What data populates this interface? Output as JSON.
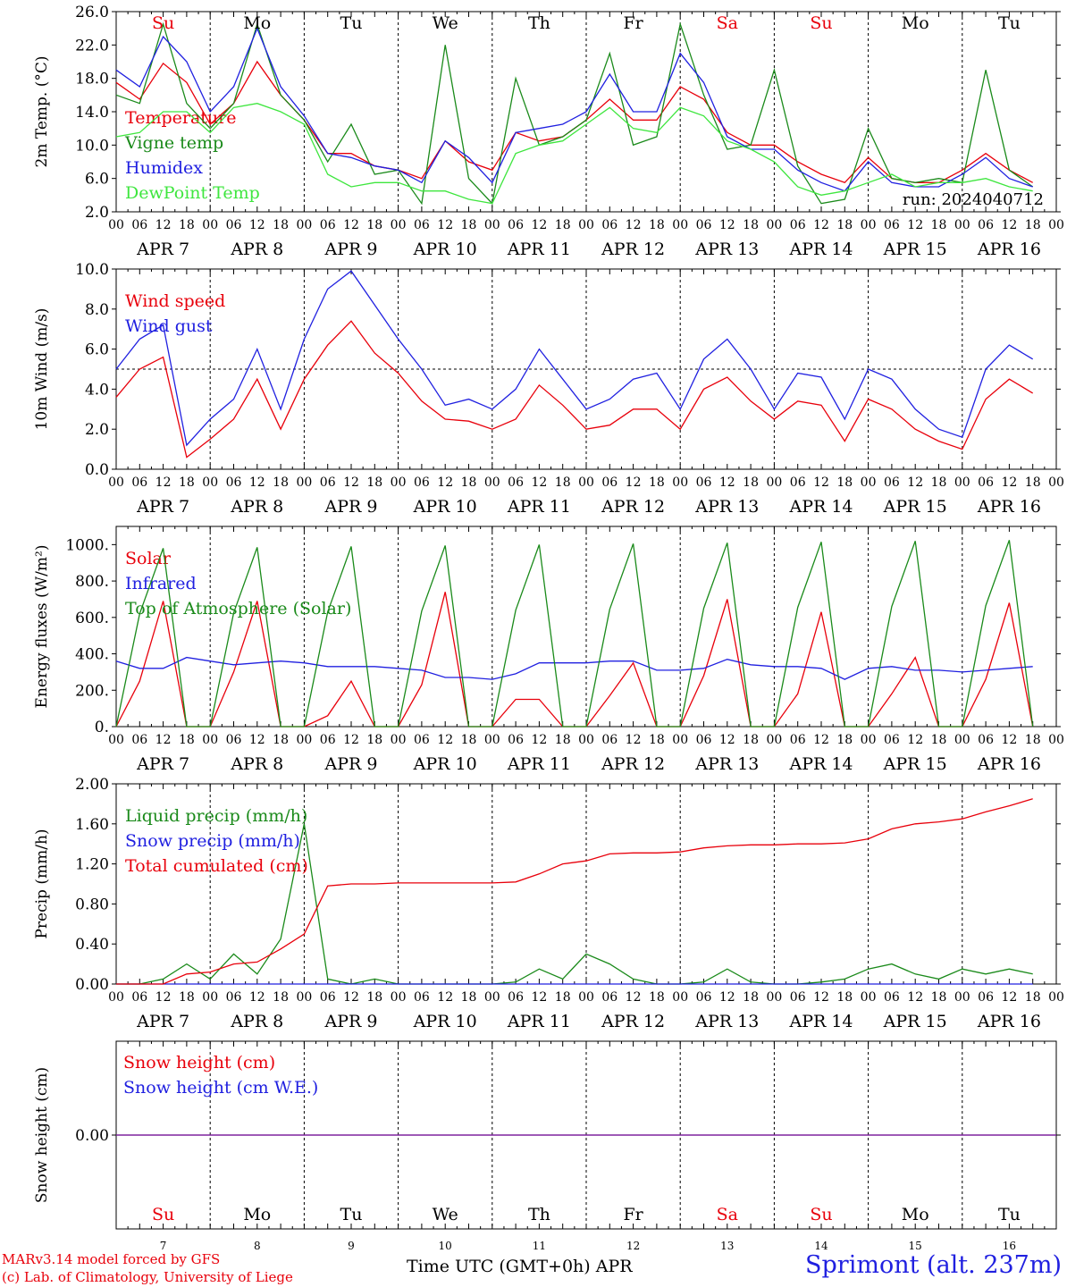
{
  "run_label": "run: 2024040712",
  "x_ticks": [
    "00",
    "06",
    "12",
    "18"
  ],
  "x_end_tick": "00",
  "days": [
    {
      "date": "APR  7",
      "num": "7",
      "dow": "Su",
      "weekend": true
    },
    {
      "date": "APR  8",
      "num": "8",
      "dow": "Mo",
      "weekend": false
    },
    {
      "date": "APR  9",
      "num": "9",
      "dow": "Tu",
      "weekend": false
    },
    {
      "date": "APR 10",
      "num": "10",
      "dow": "We",
      "weekend": false
    },
    {
      "date": "APR 11",
      "num": "11",
      "dow": "Th",
      "weekend": false
    },
    {
      "date": "APR 12",
      "num": "12",
      "dow": "Fr",
      "weekend": false
    },
    {
      "date": "APR 13",
      "num": "13",
      "dow": "Sa",
      "weekend": true
    },
    {
      "date": "APR 14",
      "num": "14",
      "dow": "Su",
      "weekend": true
    },
    {
      "date": "APR 15",
      "num": "15",
      "dow": "Mo",
      "weekend": false
    },
    {
      "date": "APR 16",
      "num": "16",
      "dow": "Tu",
      "weekend": false
    }
  ],
  "colors": {
    "red": "#e8000b",
    "green": "#1a8a1a",
    "blue": "#2020e0",
    "lightgreen": "#3ee63e",
    "purple": "#7a1a9a"
  },
  "footer": {
    "model": "MARv3.14 model forced by GFS",
    "lab": "(c) Lab. of Climatology, University of Liege",
    "axis": "Time UTC (GMT+0h) APR",
    "site": "Sprimont (alt. 237m)"
  },
  "chart_data": [
    {
      "type": "line",
      "ylabel": "2m Temp. (°C)",
      "ylim": [
        2,
        26
      ],
      "yticks": [
        "2.0",
        "6.0",
        "10.0",
        "14.0",
        "18.0",
        "22.0",
        "26.0"
      ],
      "x_hours": [
        0,
        6,
        12,
        18,
        24,
        30,
        36,
        42,
        48,
        54,
        60,
        66,
        72,
        78,
        84,
        90,
        96,
        102,
        108,
        114,
        120,
        126,
        132,
        138,
        144,
        150,
        156,
        162,
        168,
        174,
        180,
        186,
        192,
        198,
        204,
        210,
        216,
        222,
        228,
        234
      ],
      "series": [
        {
          "name": "Temperature",
          "color": "red",
          "values": [
            17.5,
            15.5,
            19.8,
            17.5,
            12.5,
            15.0,
            20.0,
            16.0,
            13.0,
            9.0,
            9.0,
            7.5,
            7.0,
            6.0,
            10.5,
            8.0,
            7.0,
            11.5,
            10.5,
            11.0,
            13.0,
            15.5,
            13.0,
            13.0,
            17.0,
            15.5,
            11.5,
            10.0,
            10.0,
            8.0,
            6.5,
            5.5,
            8.5,
            6.0,
            5.5,
            5.5,
            7.0,
            9.0,
            7.0,
            5.5
          ]
        },
        {
          "name": "Vigne temp",
          "color": "green",
          "values": [
            16.0,
            15.0,
            24.5,
            15.0,
            12.0,
            15.0,
            24.5,
            16.0,
            13.0,
            8.0,
            12.5,
            6.5,
            7.0,
            3.0,
            22.0,
            6.0,
            3.0,
            18.0,
            10.0,
            11.0,
            13.0,
            21.0,
            10.0,
            11.0,
            24.5,
            16.0,
            9.5,
            10.0,
            19.0,
            7.5,
            3.0,
            3.5,
            12.0,
            6.0,
            5.5,
            6.0,
            5.5,
            19.0,
            7.0,
            5.0
          ]
        },
        {
          "name": "Humidex",
          "color": "blue",
          "values": [
            19.0,
            17.0,
            23.0,
            20.0,
            14.0,
            17.0,
            24.0,
            17.0,
            13.5,
            9.0,
            8.5,
            7.5,
            7.0,
            5.5,
            10.5,
            8.5,
            5.5,
            11.5,
            12.0,
            12.5,
            14.0,
            18.5,
            14.0,
            14.0,
            21.0,
            17.5,
            11.0,
            9.5,
            9.5,
            7.0,
            5.5,
            4.5,
            8.0,
            5.5,
            5.0,
            5.0,
            6.5,
            8.5,
            6.0,
            5.0
          ]
        },
        {
          "name": "DewPoint Temp",
          "color": "lightgreen",
          "values": [
            11.0,
            11.5,
            14.0,
            14.0,
            11.5,
            14.5,
            15.0,
            14.0,
            12.5,
            6.5,
            5.0,
            5.5,
            5.5,
            4.5,
            4.5,
            3.5,
            3.0,
            9.0,
            10.0,
            10.5,
            12.5,
            14.5,
            12.0,
            11.5,
            14.5,
            13.5,
            10.5,
            9.5,
            8.0,
            5.0,
            4.0,
            4.5,
            5.5,
            6.5,
            5.0,
            5.5,
            5.5,
            6.0,
            5.0,
            4.5
          ]
        }
      ]
    },
    {
      "type": "line",
      "ylabel": "10m Wind (m/s)",
      "ylim": [
        0,
        10
      ],
      "yticks": [
        "0.0",
        "2.0",
        "4.0",
        "6.0",
        "8.0",
        "10.0"
      ],
      "ref_line": 5,
      "x_hours": [
        0,
        6,
        12,
        18,
        24,
        30,
        36,
        42,
        48,
        54,
        60,
        66,
        72,
        78,
        84,
        90,
        96,
        102,
        108,
        114,
        120,
        126,
        132,
        138,
        144,
        150,
        156,
        162,
        168,
        174,
        180,
        186,
        192,
        198,
        204,
        210,
        216,
        222,
        228,
        234
      ],
      "series": [
        {
          "name": "Wind speed",
          "color": "red",
          "values": [
            3.6,
            5.0,
            5.6,
            0.6,
            1.5,
            2.5,
            4.5,
            2.0,
            4.5,
            6.2,
            7.4,
            5.8,
            4.8,
            3.4,
            2.5,
            2.4,
            2.0,
            2.5,
            4.2,
            3.2,
            2.0,
            2.2,
            3.0,
            3.0,
            2.0,
            4.0,
            4.6,
            3.4,
            2.5,
            3.4,
            3.2,
            1.4,
            3.5,
            3.0,
            2.0,
            1.4,
            1.0,
            3.5,
            4.5,
            3.8
          ]
        },
        {
          "name": "Wind gust",
          "color": "blue",
          "values": [
            5.0,
            6.5,
            7.2,
            1.2,
            2.5,
            3.5,
            6.0,
            3.0,
            6.5,
            9.0,
            9.9,
            8.2,
            6.5,
            5.0,
            3.2,
            3.5,
            3.0,
            4.0,
            6.0,
            4.5,
            3.0,
            3.5,
            4.5,
            4.8,
            3.0,
            5.5,
            6.5,
            5.0,
            3.0,
            4.8,
            4.6,
            2.5,
            5.0,
            4.5,
            3.0,
            2.0,
            1.6,
            5.0,
            6.2,
            5.5
          ]
        }
      ]
    },
    {
      "type": "line",
      "ylabel": "Energy fluxes (W/m²)",
      "ylim": [
        0,
        1100
      ],
      "yticks": [
        "0.",
        "200.",
        "400.",
        "600.",
        "800.",
        "1000."
      ],
      "x_hours": [
        0,
        6,
        12,
        18,
        24,
        30,
        36,
        42,
        48,
        54,
        60,
        66,
        72,
        78,
        84,
        90,
        96,
        102,
        108,
        114,
        120,
        126,
        132,
        138,
        144,
        150,
        156,
        162,
        168,
        174,
        180,
        186,
        192,
        198,
        204,
        210,
        216,
        222,
        228,
        234
      ],
      "series": [
        {
          "name": "Solar",
          "color": "red",
          "values": [
            0,
            250,
            690,
            0,
            0,
            300,
            690,
            0,
            0,
            60,
            250,
            0,
            0,
            230,
            740,
            0,
            0,
            150,
            150,
            0,
            0,
            170,
            350,
            0,
            0,
            280,
            700,
            0,
            0,
            180,
            630,
            0,
            0,
            180,
            380,
            0,
            0,
            260,
            680,
            0
          ]
        },
        {
          "name": "Infrared",
          "color": "blue",
          "values": [
            360,
            320,
            320,
            380,
            360,
            340,
            350,
            360,
            350,
            330,
            330,
            330,
            320,
            310,
            270,
            270,
            260,
            290,
            350,
            350,
            350,
            360,
            360,
            310,
            310,
            320,
            370,
            340,
            330,
            330,
            320,
            260,
            320,
            330,
            310,
            310,
            300,
            310,
            320,
            330
          ]
        },
        {
          "name": "Top of Atmosphere (Solar)",
          "color": "green",
          "values": [
            0,
            620,
            980,
            0,
            0,
            625,
            985,
            0,
            0,
            630,
            990,
            0,
            0,
            635,
            995,
            0,
            0,
            640,
            1000,
            0,
            0,
            645,
            1005,
            0,
            0,
            650,
            1010,
            0,
            0,
            655,
            1015,
            0,
            0,
            660,
            1020,
            0,
            0,
            665,
            1025,
            0
          ]
        }
      ]
    },
    {
      "type": "line",
      "ylabel": "Precip (mm/h)",
      "ylim": [
        0,
        2.0
      ],
      "yticks": [
        "0.00",
        "0.40",
        "0.80",
        "1.20",
        "1.60",
        "2.00"
      ],
      "x_hours": [
        0,
        6,
        12,
        18,
        24,
        30,
        36,
        42,
        48,
        54,
        60,
        66,
        72,
        78,
        84,
        90,
        96,
        102,
        108,
        114,
        120,
        126,
        132,
        138,
        144,
        150,
        156,
        162,
        168,
        174,
        180,
        186,
        192,
        198,
        204,
        210,
        216,
        222,
        228,
        234
      ],
      "series": [
        {
          "name": "Liquid precip (mm/h)",
          "color": "green",
          "values": [
            0,
            0,
            0.05,
            0.2,
            0.05,
            0.3,
            0.1,
            0.45,
            1.6,
            0.05,
            0,
            0.05,
            0,
            0,
            0,
            0,
            0,
            0.02,
            0.15,
            0.05,
            0.3,
            0.2,
            0.05,
            0,
            0,
            0.02,
            0.15,
            0.02,
            0,
            0,
            0.02,
            0.05,
            0.15,
            0.2,
            0.1,
            0.05,
            0.15,
            0.1,
            0.15,
            0.1
          ]
        },
        {
          "name": "Snow precip (mm/h)",
          "color": "blue",
          "values": [
            0,
            0,
            0,
            0,
            0,
            0,
            0,
            0,
            0,
            0,
            0,
            0,
            0,
            0,
            0,
            0,
            0,
            0,
            0,
            0,
            0,
            0,
            0,
            0,
            0,
            0,
            0,
            0,
            0,
            0,
            0,
            0,
            0,
            0,
            0,
            0,
            0,
            0,
            0,
            0
          ]
        },
        {
          "name": "Total cumulated (cm)",
          "color": "red",
          "values": [
            0,
            0,
            0,
            0.1,
            0.12,
            0.2,
            0.22,
            0.35,
            0.5,
            0.98,
            1.0,
            1.0,
            1.01,
            1.01,
            1.01,
            1.01,
            1.01,
            1.02,
            1.1,
            1.2,
            1.23,
            1.3,
            1.31,
            1.31,
            1.32,
            1.36,
            1.38,
            1.39,
            1.39,
            1.4,
            1.4,
            1.41,
            1.45,
            1.55,
            1.6,
            1.62,
            1.65,
            1.72,
            1.78,
            1.85
          ]
        }
      ]
    },
    {
      "type": "line",
      "ylabel": "Snow height (cm)",
      "ylim": [
        -1,
        1
      ],
      "yticks": [
        "0.00"
      ],
      "x_hours": [
        0,
        240
      ],
      "series": [
        {
          "name": "Snow height (cm)",
          "color": "red",
          "values": [
            0,
            0
          ]
        },
        {
          "name": "Snow height (cm W.E.)",
          "color": "blue",
          "values": [
            0,
            0
          ]
        }
      ]
    }
  ]
}
